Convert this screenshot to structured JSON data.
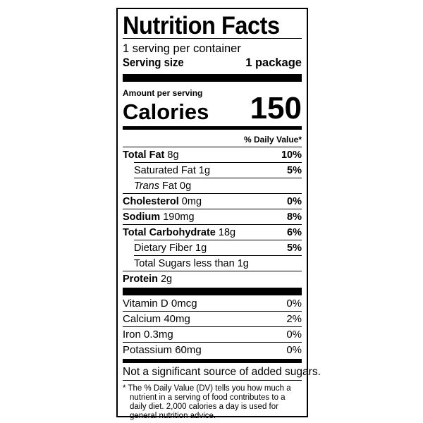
{
  "title": "Nutrition Facts",
  "servings_per_container": "1 serving per container",
  "serving_size_label": "Serving size",
  "serving_size_value": "1 package",
  "amount_per_serving": "Amount per serving",
  "calories_label": "Calories",
  "calories_value": "150",
  "daily_value_header": "% Daily Value*",
  "nutrients": [
    {
      "name": "Total Fat",
      "amount": "8g",
      "dv": "10%"
    },
    {
      "name": "Saturated Fat",
      "amount": "1g",
      "dv": "5%"
    },
    {
      "name": "Trans",
      "name_suffix": "Fat",
      "amount": "0g",
      "dv": ""
    },
    {
      "name": "Cholesterol",
      "amount": "0mg",
      "dv": "0%"
    },
    {
      "name": "Sodium",
      "amount": "190mg",
      "dv": "8%"
    },
    {
      "name": "Total Carbohydrate",
      "amount": "18g",
      "dv": "6%"
    },
    {
      "name": "Dietary Fiber",
      "amount": "1g",
      "dv": "5%"
    },
    {
      "name": "Total Sugars",
      "amount": "less than 1g",
      "dv": ""
    },
    {
      "name": "Protein",
      "amount": "2g",
      "dv": ""
    }
  ],
  "vitamins": [
    {
      "name": "Vitamin D 0mcg",
      "dv": "0%"
    },
    {
      "name": "Calcium 40mg",
      "dv": "2%"
    },
    {
      "name": "Iron 0.3mg",
      "dv": "0%"
    },
    {
      "name": "Potassium 60mg",
      "dv": "0%"
    }
  ],
  "added_sugars_note": "Not a significant source of added sugars.",
  "footnote": "* The % Daily Value (DV) tells you how much a nutrient in a serving of food contributes to a daily diet. 2,000 calories a day is used for general nutrition advice."
}
